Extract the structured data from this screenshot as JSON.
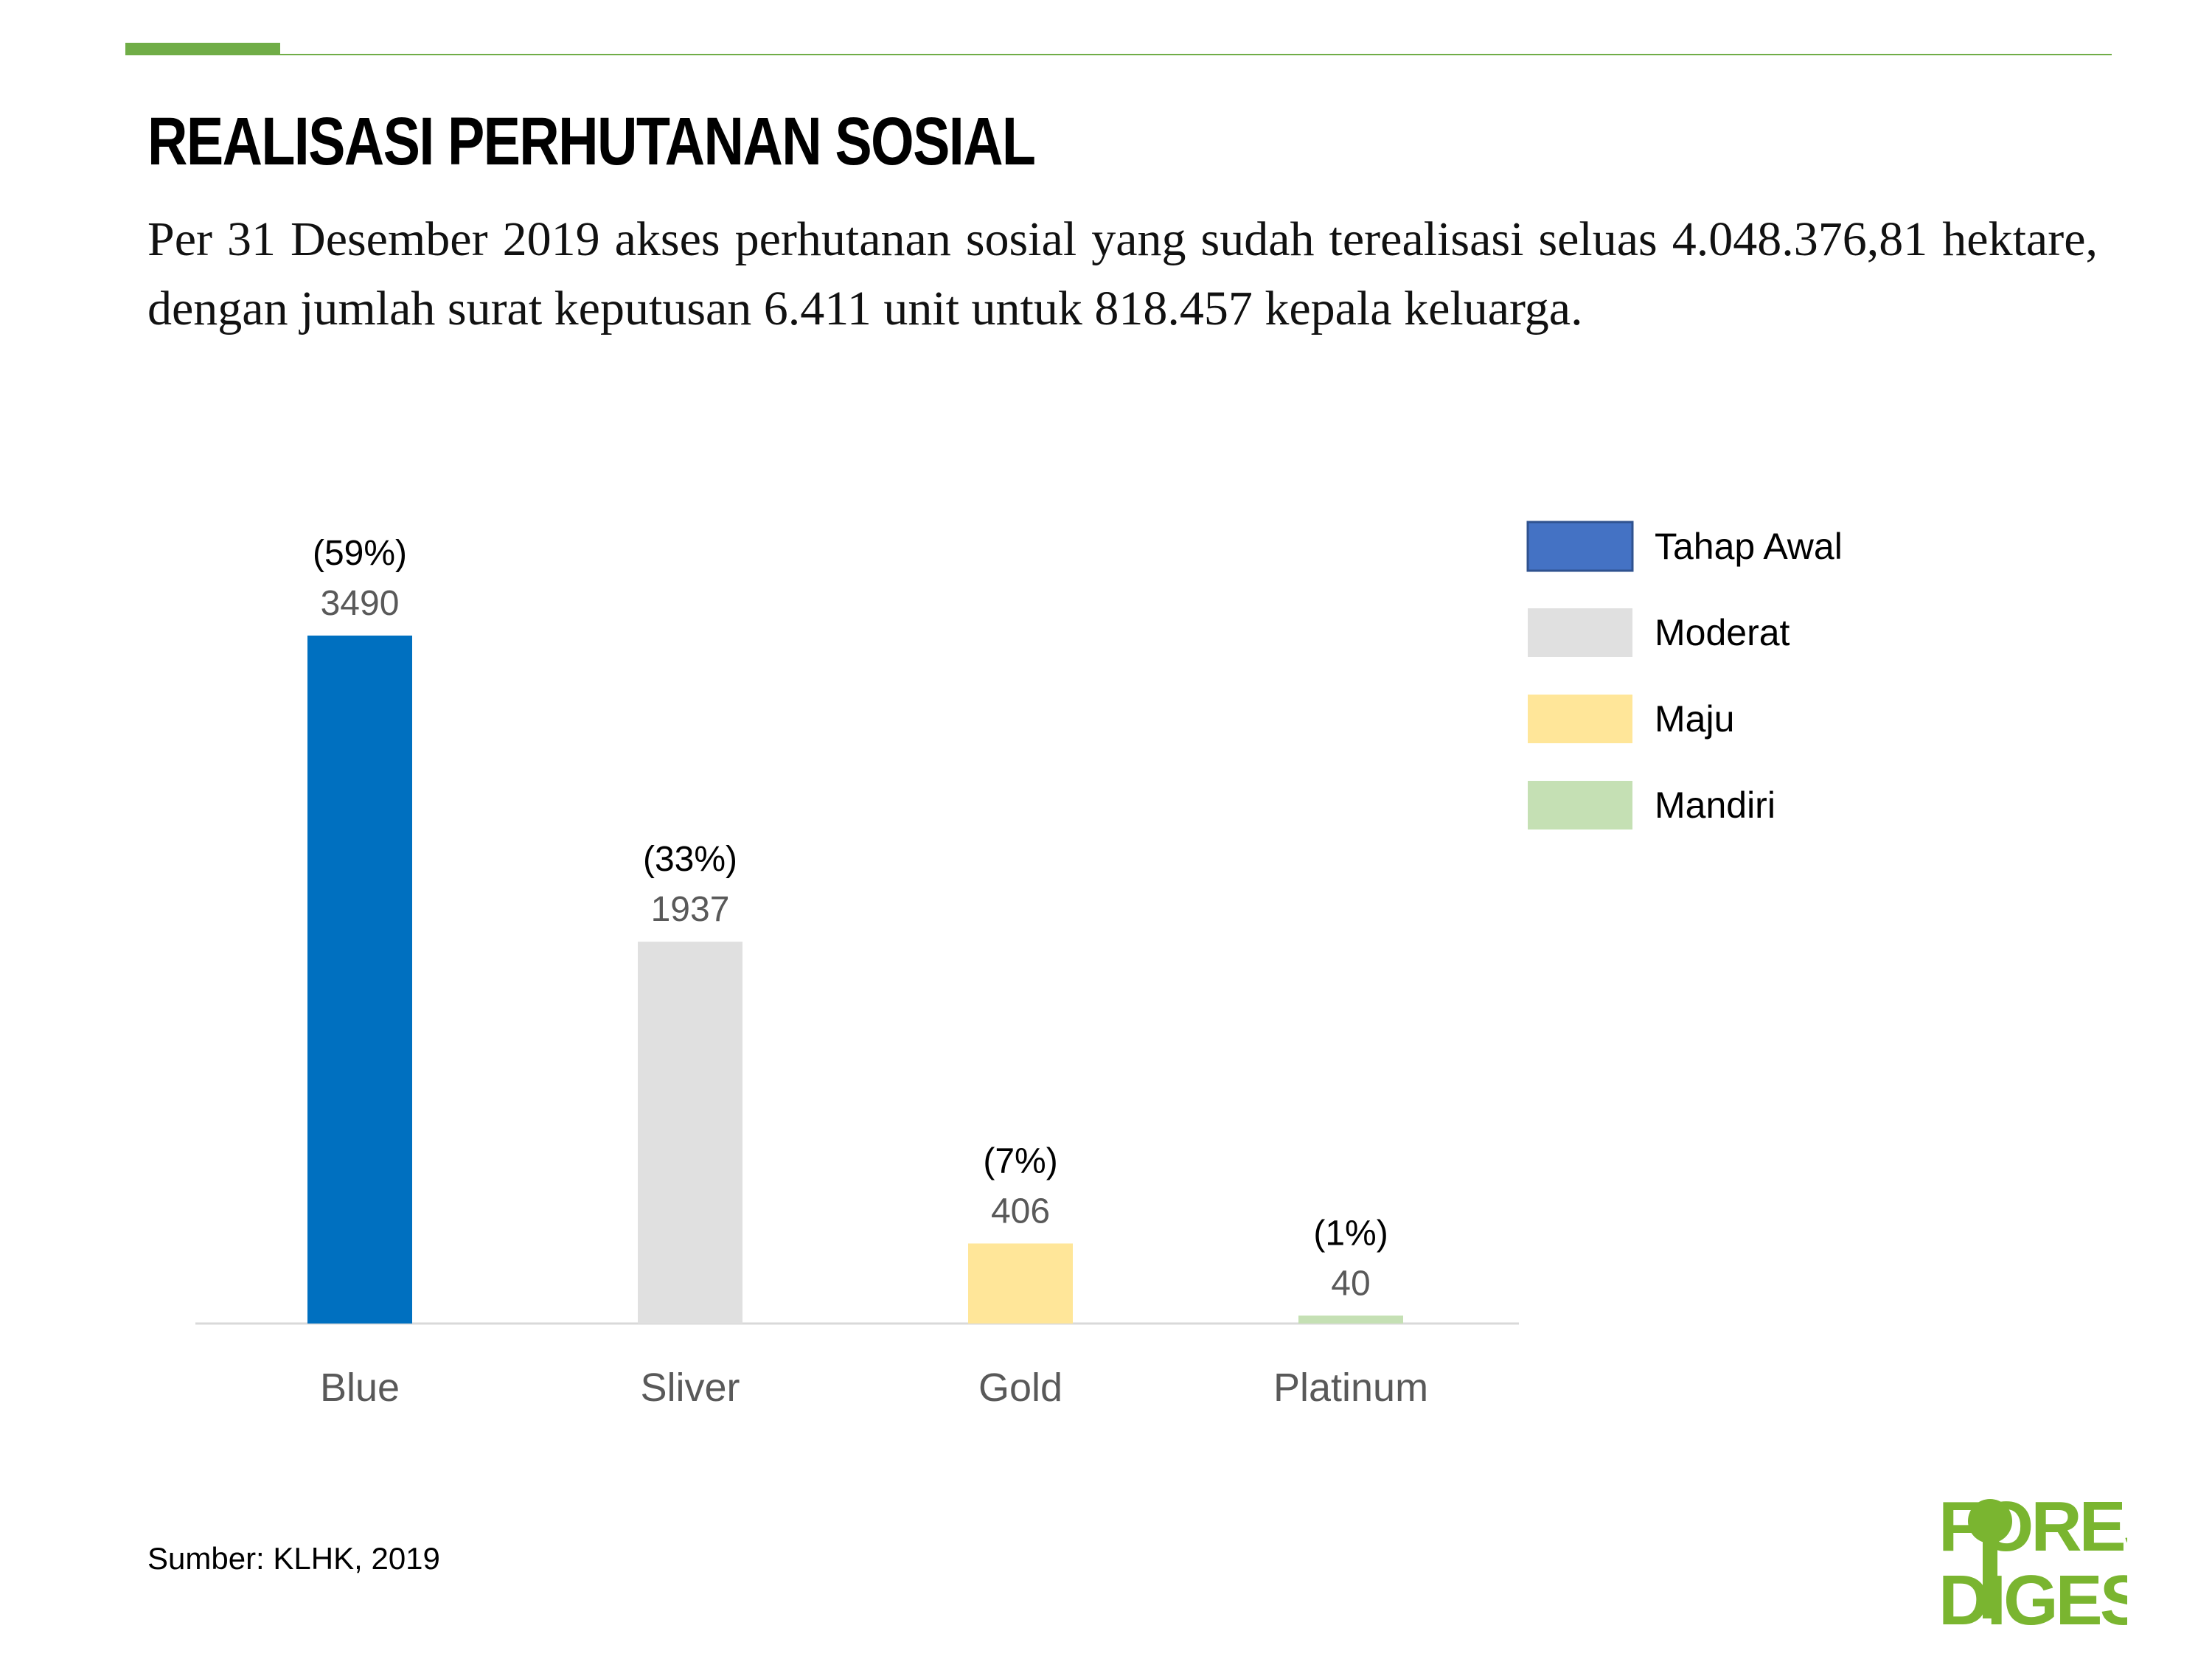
{
  "header": {
    "title": "REALISASI PERHUTANAN SOSIAL",
    "intro": "Per 31 Desember 2019 akses perhutanan sosial yang sudah terealisasi seluas 4.048.376,81 hektare, dengan jumlah surat keputusan 6.411 unit untuk 818.457 kepala keluarga."
  },
  "chart_data": {
    "type": "bar",
    "title": "",
    "xlabel": "",
    "ylabel": "",
    "categories": [
      "Blue",
      "Sliver",
      "Gold",
      "Platinum"
    ],
    "values": [
      3490,
      1937,
      406,
      40
    ],
    "percent_labels": [
      "(59%)",
      "(33%)",
      "(7%)",
      "(1%)"
    ],
    "ylim": [
      0,
      3490
    ],
    "grid": false,
    "bar_colors": [
      "#0070c0",
      "#e0e0e0",
      "#ffe699",
      "#c5e0b4"
    ],
    "legend": {
      "placement": "right",
      "entries": [
        {
          "label": "Tahap Awal",
          "color": "#4472c4"
        },
        {
          "label": "Moderat",
          "color": "#e0e0e0"
        },
        {
          "label": "Maju",
          "color": "#ffe699"
        },
        {
          "label": "Mandiri",
          "color": "#c5e0b4"
        }
      ]
    }
  },
  "footer": {
    "source": "Sumber: KLHK, 2019",
    "logo_line1": "FOREST",
    "logo_line2": "DIGEST"
  },
  "colors": {
    "accent": "#70ad47",
    "logo": "#7ab530",
    "value_label": "#595959",
    "axis": "#d9d9d9"
  }
}
